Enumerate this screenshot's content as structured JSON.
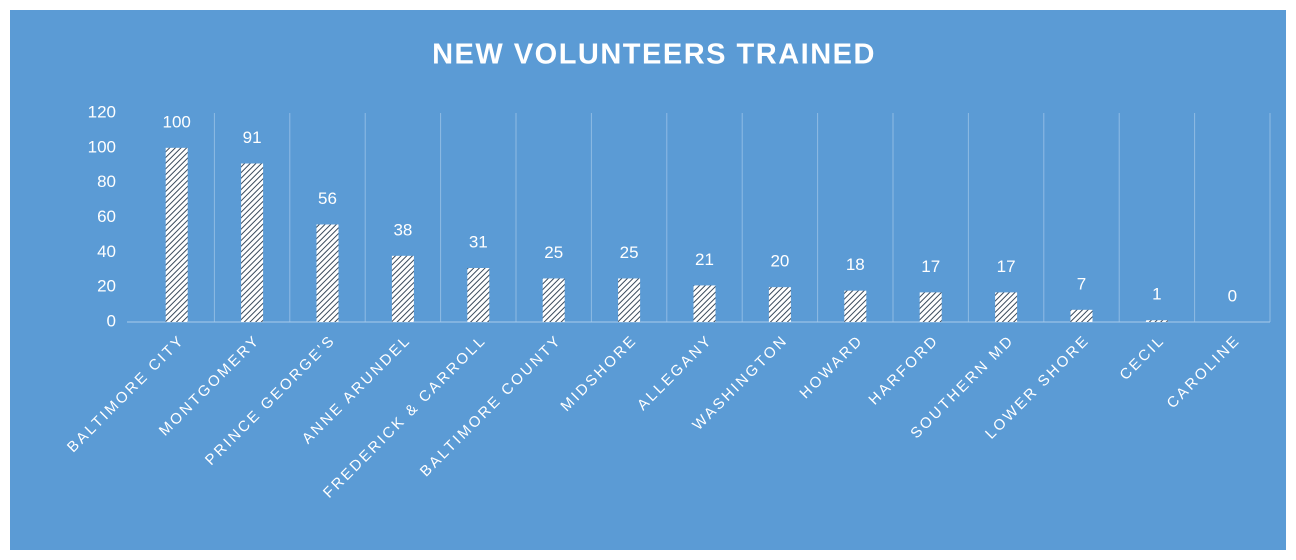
{
  "chart_data": {
    "type": "bar",
    "title": "NEW VOLUNTEERS TRAINED",
    "categories": [
      "BALTIMORE CITY",
      "MONTGOMERY",
      "PRINCE GEORGE'S",
      "ANNE ARUNDEL",
      "FREDERICK & CARROLL",
      "BALTIMORE COUNTY",
      "MIDSHORE",
      "ALLEGANY",
      "WASHINGTON",
      "HOWARD",
      "HARFORD",
      "SOUTHERN MD",
      "LOWER SHORE",
      "CECIL",
      "CAROLINE"
    ],
    "values": [
      100,
      91,
      56,
      38,
      31,
      25,
      25,
      21,
      20,
      18,
      17,
      17,
      7,
      1,
      0
    ],
    "ylim": [
      0,
      120
    ],
    "yticks": [
      0,
      20,
      40,
      60,
      80,
      100,
      120
    ],
    "grid": true
  }
}
